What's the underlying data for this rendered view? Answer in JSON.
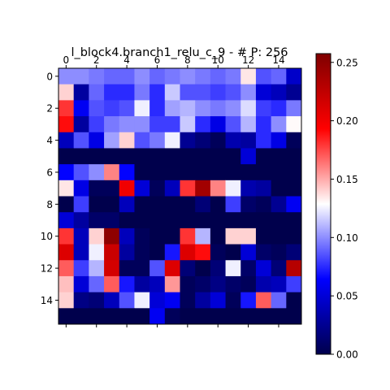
{
  "chart_data": {
    "type": "heatmap",
    "title": "l_block4.branch1_relu_c_9 - # P: 256",
    "colormap": "seismic",
    "colorbar": {
      "range": [
        0.0,
        0.2575
      ],
      "ticks": [
        "0.00",
        "0.05",
        "0.10",
        "0.15",
        "0.20",
        "0.25"
      ],
      "tick_values": [
        0.0,
        0.05,
        0.1,
        0.15,
        0.2,
        0.25
      ]
    },
    "x_tick_labels": [
      "0",
      "2",
      "4",
      "6",
      "8",
      "10",
      "12",
      "14"
    ],
    "y_tick_labels": [
      "0",
      "2",
      "4",
      "6",
      "8",
      "10",
      "12",
      "14"
    ],
    "x_axis_position": "top",
    "rows": 16,
    "cols": 16,
    "values": [
      [
        0.1,
        0.1,
        0.095,
        0.09,
        0.09,
        0.1,
        0.09,
        0.095,
        0.1,
        0.095,
        0.09,
        0.095,
        0.135,
        0.085,
        0.09,
        0.045
      ],
      [
        0.14,
        0.03,
        0.09,
        0.075,
        0.075,
        0.095,
        0.075,
        0.115,
        0.085,
        0.085,
        0.08,
        0.085,
        0.1,
        0.05,
        0.04,
        0.025
      ],
      [
        0.18,
        0.06,
        0.085,
        0.08,
        0.085,
        0.125,
        0.075,
        0.105,
        0.11,
        0.1,
        0.095,
        0.1,
        0.12,
        0.08,
        0.075,
        0.095
      ],
      [
        0.19,
        0.03,
        0.08,
        0.095,
        0.1,
        0.1,
        0.08,
        0.08,
        0.115,
        0.075,
        0.055,
        0.085,
        0.11,
        0.075,
        0.1,
        0.13
      ],
      [
        0.04,
        0.085,
        0.055,
        0.105,
        0.14,
        0.085,
        0.095,
        0.125,
        0.025,
        0.015,
        0.005,
        0.035,
        0.03,
        0.075,
        0.055,
        0.005
      ],
      [
        0.0,
        0.0,
        0.0,
        0.0,
        0.0,
        0.0,
        0.0,
        0.0,
        0.0,
        0.0,
        0.0,
        0.0,
        0.05,
        0.0,
        0.0,
        0.0
      ],
      [
        0.065,
        0.085,
        0.1,
        0.16,
        0.065,
        0.0,
        0.0,
        0.0,
        0.0,
        0.0,
        0.0,
        0.0,
        0.0,
        0.0,
        0.0,
        0.0
      ],
      [
        0.135,
        0.055,
        0.005,
        0.005,
        0.2,
        0.05,
        0.005,
        0.04,
        0.18,
        0.24,
        0.16,
        0.125,
        0.035,
        0.03,
        0.0,
        0.0
      ],
      [
        0.0,
        0.08,
        0.0,
        0.0,
        0.04,
        0.0,
        0.0,
        0.0,
        0.0,
        0.015,
        0.0,
        0.08,
        0.01,
        0.005,
        0.025,
        0.06
      ],
      [
        0.05,
        0.03,
        0.01,
        0.01,
        0.0,
        0.0,
        0.0,
        0.0,
        0.0,
        0.0,
        0.0,
        0.0,
        0.0,
        0.0,
        0.0,
        0.0
      ],
      [
        0.18,
        0.04,
        0.14,
        0.25,
        0.04,
        0.005,
        0.0,
        0.0,
        0.18,
        0.11,
        0.0,
        0.14,
        0.14,
        0.0,
        0.0,
        0.0
      ],
      [
        0.21,
        0.04,
        0.125,
        0.22,
        0.03,
        0.005,
        0.0,
        0.07,
        0.21,
        0.19,
        0.005,
        0.0,
        0.05,
        0.01,
        0.005,
        0.015
      ],
      [
        0.17,
        0.08,
        0.11,
        0.215,
        0.005,
        0.005,
        0.085,
        0.21,
        0.015,
        0.0,
        0.015,
        0.125,
        0.01,
        0.05,
        0.015,
        0.23
      ],
      [
        0.145,
        0.05,
        0.09,
        0.17,
        0.07,
        0.03,
        0.04,
        0.155,
        0.005,
        0.01,
        0.02,
        0.01,
        0.005,
        0.035,
        0.04,
        0.08
      ],
      [
        0.14,
        0.02,
        0.015,
        0.04,
        0.085,
        0.125,
        0.05,
        0.06,
        0.005,
        0.03,
        0.05,
        0.005,
        0.07,
        0.17,
        0.09,
        0.0
      ],
      [
        0.0,
        0.0,
        0.0,
        0.0,
        0.0,
        0.0,
        0.06,
        0.005,
        0.0,
        0.0,
        0.0,
        0.0,
        0.0,
        0.0,
        0.0,
        0.0
      ]
    ]
  }
}
